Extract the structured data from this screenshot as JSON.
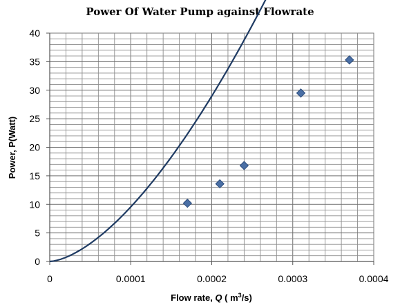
{
  "chart_data": {
    "type": "scatter",
    "title": "Power Of Water Pump against Flowrate",
    "xlabel": "Flow rate, Q ( m³/s)",
    "xlabel_parts": {
      "prefix": "Flow rate, ",
      "var": "Q",
      "mid": " ( m",
      "sup": "3",
      "suffix": "/s)"
    },
    "ylabel": "Power, P(Watt)",
    "xlim": [
      0,
      0.0004
    ],
    "ylim": [
      0,
      40
    ],
    "x_ticks": [
      0,
      0.0001,
      0.0002,
      0.0003,
      0.0004
    ],
    "x_tick_labels": [
      "0",
      "0.0001",
      "0.0002",
      "0.0003",
      "0.0004"
    ],
    "y_ticks": [
      0,
      5,
      10,
      15,
      20,
      25,
      30,
      35,
      40
    ],
    "y_tick_labels": [
      "0",
      "5",
      "10",
      "15",
      "20",
      "25",
      "30",
      "35",
      "40"
    ],
    "grid": true,
    "series": [
      {
        "values": [
          {
            "x": 0.00017,
            "y": 10.2
          },
          {
            "x": 0.00021,
            "y": 13.6
          },
          {
            "x": 0.00024,
            "y": 16.8
          },
          {
            "x": 0.00031,
            "y": 29.5
          },
          {
            "x": 0.00037,
            "y": 35.3
          }
        ],
        "marker": "diamond",
        "color": "#4a6fa5"
      }
    ],
    "trendline": {
      "type": "power",
      "x_range": [
        0,
        0.000372
      ],
      "coefficients": {
        "a": 24000000.0,
        "b": 1.6
      },
      "color": "#1f3b63"
    }
  }
}
